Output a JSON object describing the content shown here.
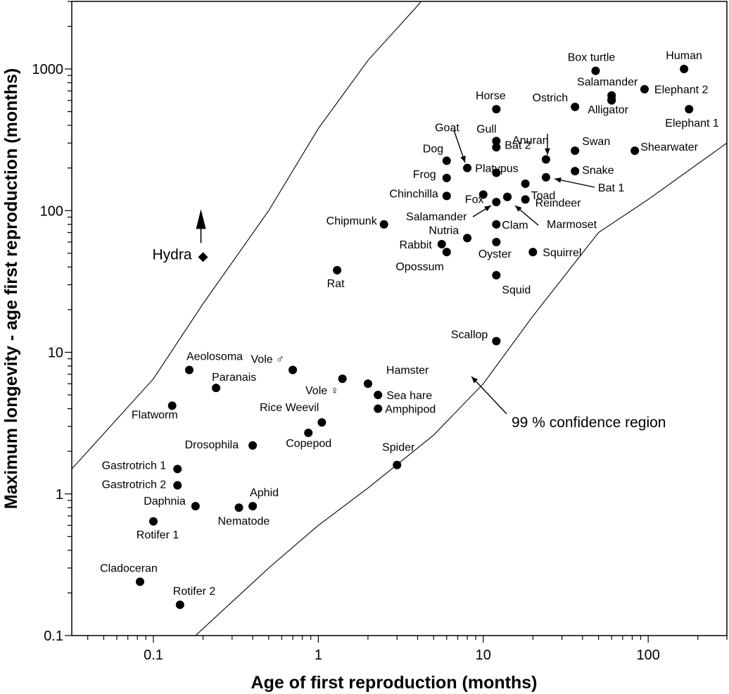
{
  "chart_data": {
    "type": "scatter",
    "title": "",
    "xlabel": "Age of first reproduction (months)",
    "ylabel": "Maximum longevity - age first reproduction (months)",
    "xscale": "log",
    "yscale": "log",
    "xlim": [
      0.032,
      300
    ],
    "ylim": [
      0.1,
      3000
    ],
    "xticks": [
      {
        "v": 0.1,
        "label": "0.1"
      },
      {
        "v": 1,
        "label": "1"
      },
      {
        "v": 10,
        "label": "10"
      },
      {
        "v": 100,
        "label": "100"
      }
    ],
    "yticks": [
      {
        "v": 0.1,
        "label": "0.1"
      },
      {
        "v": 1,
        "label": "1"
      },
      {
        "v": 10,
        "label": "10"
      },
      {
        "v": 100,
        "label": "100"
      },
      {
        "v": 1000,
        "label": "1000"
      }
    ],
    "grid": false,
    "points": [
      {
        "label": "Human",
        "x": 165,
        "y": 1000
      },
      {
        "label": "Box turtle",
        "x": 48,
        "y": 970
      },
      {
        "label": "Salamander",
        "x": 60,
        "y": 650
      },
      {
        "label": "",
        "x": 60,
        "y": 600
      },
      {
        "label": "Elephant 2",
        "x": 95,
        "y": 720
      },
      {
        "label": "Ostrich",
        "x": 36,
        "y": 540
      },
      {
        "label": "Alligator",
        "x": 60,
        "y": 610
      },
      {
        "label": "Elephant 1",
        "x": 177,
        "y": 520
      },
      {
        "label": "Horse",
        "x": 12,
        "y": 520
      },
      {
        "label": "Gull",
        "x": 12,
        "y": 310
      },
      {
        "label": "Bat 2",
        "x": 12,
        "y": 280
      },
      {
        "label": "Anuran",
        "x": 24,
        "y": 230
      },
      {
        "label": "Swan",
        "x": 36,
        "y": 265
      },
      {
        "label": "Shearwater",
        "x": 83,
        "y": 265
      },
      {
        "label": "Dog",
        "x": 6,
        "y": 225
      },
      {
        "label": "Goat",
        "x": 8,
        "y": 200
      },
      {
        "label": "Platypus",
        "x": 12,
        "y": 185
      },
      {
        "label": "Snake",
        "x": 36,
        "y": 190
      },
      {
        "label": "Frog",
        "x": 6,
        "y": 170
      },
      {
        "label": "Bat 1",
        "x": 24,
        "y": 172
      },
      {
        "label": "Fox",
        "x": 10,
        "y": 130
      },
      {
        "label": "Toad",
        "x": 18,
        "y": 155
      },
      {
        "label": "Chinchilla",
        "x": 6,
        "y": 127
      },
      {
        "label": "",
        "x": 14,
        "y": 125
      },
      {
        "label": "Reindeer",
        "x": 18,
        "y": 120
      },
      {
        "label": "Salamander",
        "x": 12,
        "y": 115
      },
      {
        "label": "Chipmunk",
        "x": 2.5,
        "y": 80
      },
      {
        "label": "Clam",
        "x": 12,
        "y": 80
      },
      {
        "label": "Marmoset",
        "x": 14,
        "y": 125
      },
      {
        "label": "Nutria",
        "x": 8,
        "y": 64
      },
      {
        "label": "Rabbit",
        "x": 5.6,
        "y": 58
      },
      {
        "label": "Oyster",
        "x": 12,
        "y": 60
      },
      {
        "label": "Opossum",
        "x": 6,
        "y": 51
      },
      {
        "label": "Squirrel",
        "x": 20,
        "y": 51
      },
      {
        "label": "Rat",
        "x": 1.3,
        "y": 38
      },
      {
        "label": "Squid",
        "x": 12,
        "y": 35
      },
      {
        "label": "Scallop",
        "x": 12,
        "y": 12
      },
      {
        "label": "Aeolosoma",
        "x": 0.165,
        "y": 7.5
      },
      {
        "label": "Vole ♂",
        "x": 0.7,
        "y": 7.5
      },
      {
        "label": "Vole ♀",
        "x": 1.4,
        "y": 6.5
      },
      {
        "label": "Paranais",
        "x": 0.24,
        "y": 5.6
      },
      {
        "label": "Hamster",
        "x": 2,
        "y": 6
      },
      {
        "label": "Sea hare",
        "x": 2.3,
        "y": 5
      },
      {
        "label": "Flatworm",
        "x": 0.13,
        "y": 4.2
      },
      {
        "label": "Amphipod",
        "x": 2.3,
        "y": 4
      },
      {
        "label": "Rice Weevil",
        "x": 1.05,
        "y": 3.2
      },
      {
        "label": "Copepod",
        "x": 0.87,
        "y": 2.7
      },
      {
        "label": "Drosophila",
        "x": 0.4,
        "y": 2.2
      },
      {
        "label": "Spider",
        "x": 3,
        "y": 1.6
      },
      {
        "label": "Gastrotrich 1",
        "x": 0.14,
        "y": 1.5
      },
      {
        "label": "Gastrotrich 2",
        "x": 0.14,
        "y": 1.15
      },
      {
        "label": "Daphnia",
        "x": 0.18,
        "y": 0.82
      },
      {
        "label": "Aphid",
        "x": 0.4,
        "y": 0.82
      },
      {
        "label": "Nematode",
        "x": 0.33,
        "y": 0.8
      },
      {
        "label": "Rotifer 1",
        "x": 0.1,
        "y": 0.64
      },
      {
        "label": "Cladoceran",
        "x": 0.083,
        "y": 0.24
      },
      {
        "label": "Rotifer 2",
        "x": 0.145,
        "y": 0.165
      }
    ],
    "special_points": [
      {
        "label": "Hydra",
        "x": 0.2,
        "y": 47,
        "marker": "diamond",
        "arrow": "up"
      }
    ],
    "annotations": [
      {
        "text": "99 % confidence region"
      }
    ],
    "confidence_region": {
      "upper": [
        [
          0.032,
          1.5
        ],
        [
          0.1,
          6.5
        ],
        [
          0.2,
          22
        ],
        [
          0.5,
          100
        ],
        [
          1,
          380
        ],
        [
          2,
          1150
        ],
        [
          4,
          2800
        ],
        [
          6,
          5000
        ]
      ],
      "lower": [
        [
          0.18,
          0.1
        ],
        [
          0.5,
          0.3
        ],
        [
          1,
          0.6
        ],
        [
          2,
          1.1
        ],
        [
          5,
          2.6
        ],
        [
          10,
          6
        ],
        [
          20,
          18
        ],
        [
          50,
          70
        ],
        [
          100,
          120
        ],
        [
          300,
          300
        ]
      ]
    }
  }
}
